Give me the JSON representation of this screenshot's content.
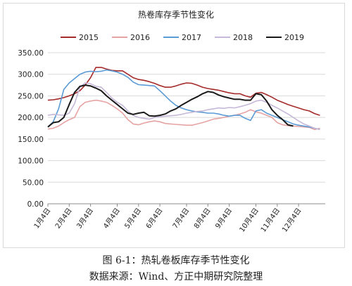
{
  "chart_data": {
    "type": "line",
    "title": "热卷库存季节性变化",
    "xlabel": "",
    "ylabel": "",
    "ylim": [
      0,
      350
    ],
    "yticks": [
      "0.00",
      "50.00",
      "100.00",
      "150.00",
      "200.00",
      "250.00",
      "300.00",
      "350.00"
    ],
    "xlim": [
      1,
      53
    ],
    "x_ticks": [
      {
        "week": 1,
        "label": "1月4日"
      },
      {
        "week": 5,
        "label": "2月4日"
      },
      {
        "week": 9,
        "label": "3月4日"
      },
      {
        "week": 14,
        "label": "4月4日"
      },
      {
        "week": 18,
        "label": "5月4日"
      },
      {
        "week": 22,
        "label": "6月4日"
      },
      {
        "week": 27,
        "label": "7月4日"
      },
      {
        "week": 31,
        "label": "8月4日"
      },
      {
        "week": 35,
        "label": "9月4日"
      },
      {
        "week": 40,
        "label": "10月4日"
      },
      {
        "week": 44,
        "label": "11月4日"
      },
      {
        "week": 48,
        "label": "12月4日"
      }
    ],
    "legend_position": "top",
    "grid": "horizontal",
    "series": [
      {
        "name": "2015",
        "color": "#a52a2a",
        "x": [
          1,
          2,
          3,
          4,
          5,
          6,
          7,
          8,
          9,
          10,
          11,
          12,
          13,
          14,
          15,
          16,
          17,
          18,
          19,
          20,
          21,
          22,
          23,
          24,
          25,
          26,
          27,
          28,
          29,
          30,
          31,
          32,
          33,
          34,
          35,
          36,
          37,
          38,
          39,
          40,
          41,
          42,
          43,
          44,
          45,
          46,
          47,
          48,
          49,
          50,
          51,
          52
        ],
        "y": [
          240,
          241,
          243,
          246,
          250,
          255,
          262,
          275,
          292,
          316,
          316,
          312,
          309,
          308,
          308,
          300,
          292,
          288,
          286,
          283,
          279,
          274,
          270,
          270,
          273,
          277,
          280,
          279,
          275,
          270,
          267,
          265,
          263,
          260,
          257,
          255,
          255,
          250,
          247,
          256,
          258,
          253,
          247,
          240,
          235,
          230,
          226,
          222,
          218,
          215,
          209,
          205
        ]
      },
      {
        "name": "2016",
        "color": "#e6a3a3",
        "x": [
          1,
          2,
          3,
          4,
          5,
          6,
          7,
          8,
          9,
          10,
          11,
          12,
          13,
          14,
          15,
          16,
          17,
          18,
          19,
          20,
          21,
          22,
          23,
          24,
          25,
          26,
          27,
          28,
          29,
          30,
          31,
          32,
          33,
          34,
          35,
          36,
          37,
          38,
          39,
          40,
          41,
          42,
          43,
          44,
          45,
          46,
          47,
          48,
          49,
          50,
          51,
          52
        ],
        "y": [
          173,
          175,
          180,
          188,
          195,
          200,
          225,
          235,
          238,
          240,
          238,
          235,
          228,
          220,
          210,
          195,
          185,
          183,
          187,
          190,
          192,
          190,
          186,
          185,
          184,
          183,
          182,
          182,
          185,
          188,
          192,
          196,
          198,
          200,
          203,
          205,
          208,
          212,
          218,
          213,
          210,
          205,
          200,
          188,
          183,
          181,
          180,
          179,
          178,
          177,
          172,
          175
        ]
      },
      {
        "name": "2017",
        "color": "#5b9bd5",
        "x": [
          1,
          2,
          3,
          4,
          5,
          6,
          7,
          8,
          9,
          10,
          11,
          12,
          13,
          14,
          15,
          16,
          17,
          18,
          19,
          20,
          21,
          22,
          23,
          24,
          25,
          26,
          27,
          28,
          29,
          30,
          31,
          32,
          33,
          34,
          35,
          36,
          37,
          38,
          39,
          40,
          41,
          42,
          43,
          44,
          45,
          46,
          47,
          48,
          49,
          50,
          51,
          52
        ],
        "y": [
          178,
          190,
          220,
          265,
          280,
          290,
          300,
          305,
          307,
          306,
          307,
          310,
          308,
          305,
          300,
          293,
          282,
          276,
          275,
          274,
          273,
          262,
          250,
          238,
          228,
          222,
          218,
          215,
          213,
          212,
          210,
          210,
          208,
          205,
          203,
          205,
          205,
          198,
          193,
          215,
          218,
          210,
          205,
          200,
          195,
          190,
          185,
          182,
          180,
          178,
          175,
          172
        ]
      },
      {
        "name": "2018",
        "color": "#c6b8d8",
        "x": [
          1,
          2,
          3,
          4,
          5,
          6,
          7,
          8,
          9,
          10,
          11,
          12,
          13,
          14,
          15,
          16,
          17,
          18,
          19,
          20,
          21,
          22,
          23,
          24,
          25,
          26,
          27,
          28,
          29,
          30,
          31,
          32,
          33,
          34,
          35,
          36,
          37,
          38,
          39,
          40,
          41,
          42,
          43,
          44,
          45,
          46,
          47,
          48,
          49,
          50,
          51,
          52
        ],
        "y": [
          205,
          207,
          206,
          205,
          210,
          232,
          270,
          280,
          278,
          272,
          270,
          258,
          245,
          235,
          228,
          215,
          205,
          200,
          198,
          196,
          200,
          202,
          203,
          204,
          205,
          207,
          210,
          212,
          214,
          215,
          218,
          220,
          222,
          221,
          223,
          222,
          225,
          228,
          232,
          238,
          240,
          235,
          228,
          222,
          215,
          208,
          200,
          192,
          185,
          180,
          175,
          172
        ]
      },
      {
        "name": "2019",
        "color": "#1a1a1a",
        "x": [
          1,
          2,
          3,
          4,
          5,
          6,
          7,
          8,
          9,
          10,
          11,
          12,
          13,
          14,
          15,
          16,
          17,
          18,
          19,
          20,
          21,
          22,
          23,
          24,
          25,
          26,
          27,
          28,
          29,
          30,
          31,
          32,
          33,
          34,
          35,
          36,
          37,
          38,
          39,
          40,
          41,
          42,
          43,
          44,
          45,
          46,
          47
        ],
        "y": [
          178,
          188,
          190,
          200,
          230,
          258,
          272,
          275,
          273,
          268,
          262,
          250,
          240,
          230,
          220,
          210,
          207,
          210,
          212,
          204,
          203,
          205,
          208,
          215,
          220,
          228,
          235,
          242,
          248,
          255,
          260,
          258,
          252,
          248,
          245,
          242,
          242,
          240,
          240,
          255,
          253,
          238,
          218,
          205,
          195,
          183,
          180
        ]
      }
    ]
  },
  "captions": {
    "figure": "图 6-1：热轧卷板库存季节性变化",
    "source": "数据来源：Wind、方正中期研究院整理"
  }
}
